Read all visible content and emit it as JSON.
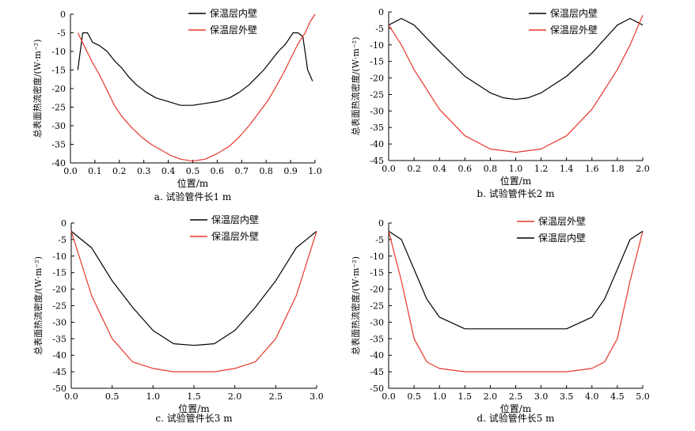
{
  "chart_data": [
    {
      "type": "line",
      "caption": "a. 试验管件长1 m",
      "xlabel": "位置/m",
      "ylabel": "总表面热流密度/(W·m⁻²)",
      "xlim": [
        0,
        1.0
      ],
      "ylim": [
        -40,
        0
      ],
      "xticks": [
        0.0,
        0.1,
        0.2,
        0.3,
        0.4,
        0.5,
        0.6,
        0.7,
        0.8,
        0.9,
        1.0
      ],
      "xtick_labels": [
        "0.0",
        "0.1",
        "0.2",
        "0.3",
        "0.4",
        "0.5",
        "0.6",
        "0.7",
        "0.8",
        "0.9",
        "1.0"
      ],
      "yticks": [
        0,
        -5,
        -10,
        -15,
        -20,
        -25,
        -30,
        -35,
        -40
      ],
      "ytick_labels": [
        "0",
        "-5",
        "-10",
        "-15",
        "-20",
        "-25",
        "-30",
        "-35",
        "-40"
      ],
      "legend_position": "top-right",
      "series": [
        {
          "name": "保温层内壁",
          "color": "#000000",
          "x": [
            0.03,
            0.05,
            0.07,
            0.09,
            0.12,
            0.15,
            0.18,
            0.21,
            0.24,
            0.27,
            0.31,
            0.35,
            0.4,
            0.45,
            0.5,
            0.55,
            0.6,
            0.65,
            0.69,
            0.73,
            0.76,
            0.79,
            0.82,
            0.85,
            0.88,
            0.91,
            0.93,
            0.95,
            0.97,
            0.99
          ],
          "y": [
            -15.0,
            -5.0,
            -5.0,
            -7.5,
            -8.5,
            -10.0,
            -12.5,
            -14.5,
            -17.0,
            -19.0,
            -21.0,
            -22.5,
            -23.5,
            -24.5,
            -24.5,
            -24.0,
            -23.5,
            -22.5,
            -21.0,
            -19.0,
            -17.0,
            -15.0,
            -12.5,
            -10.0,
            -8.0,
            -5.0,
            -5.0,
            -6.0,
            -15.0,
            -18.0
          ]
        },
        {
          "name": "保温层外壁",
          "color": "#e8362a",
          "x": [
            0.03,
            0.06,
            0.09,
            0.12,
            0.15,
            0.18,
            0.21,
            0.25,
            0.29,
            0.33,
            0.37,
            0.41,
            0.45,
            0.5,
            0.55,
            0.6,
            0.65,
            0.69,
            0.73,
            0.77,
            0.81,
            0.84,
            0.87,
            0.9,
            0.93,
            0.96,
            0.98,
            1.0
          ],
          "y": [
            -5.0,
            -9.0,
            -13.0,
            -16.5,
            -20.5,
            -24.5,
            -27.5,
            -30.5,
            -33.0,
            -35.0,
            -36.5,
            -38.0,
            -39.0,
            -39.5,
            -39.0,
            -37.5,
            -35.5,
            -33.0,
            -30.0,
            -26.5,
            -23.0,
            -19.5,
            -16.0,
            -12.0,
            -8.0,
            -5.0,
            -2.0,
            0.0
          ]
        }
      ]
    },
    {
      "type": "line",
      "caption": "b. 试验管件长2 m",
      "xlabel": "位置/m",
      "ylabel": "总表面热流密度/(W·m⁻²)",
      "xlim": [
        0,
        2.0
      ],
      "ylim": [
        -45,
        0
      ],
      "xticks": [
        0.0,
        0.2,
        0.4,
        0.6,
        0.8,
        1.0,
        1.2,
        1.4,
        1.6,
        1.8,
        2.0
      ],
      "xtick_labels": [
        "0.0",
        "0.2",
        "0.4",
        "0.6",
        "0.8",
        "1.0",
        "1.2",
        "1.4",
        "1.6",
        "1.8",
        "2.0"
      ],
      "yticks": [
        0,
        -5,
        -10,
        -15,
        -20,
        -25,
        -30,
        -35,
        -40,
        -45
      ],
      "ytick_labels": [
        "0",
        "-5",
        "-10",
        "-15",
        "-20",
        "-25",
        "-30",
        "-35",
        "-40",
        "-45"
      ],
      "legend_position": "top-right",
      "series": [
        {
          "name": "保温层内壁",
          "color": "#000000",
          "x": [
            0.0,
            0.1,
            0.2,
            0.4,
            0.6,
            0.8,
            0.9,
            1.0,
            1.1,
            1.2,
            1.4,
            1.6,
            1.8,
            1.9,
            2.0
          ],
          "y": [
            -4.0,
            -2.0,
            -4.0,
            -12.0,
            -19.5,
            -24.5,
            -26.0,
            -26.5,
            -26.0,
            -24.5,
            -19.5,
            -12.5,
            -4.0,
            -2.0,
            -4.0
          ]
        },
        {
          "name": "保温层外壁",
          "color": "#e8362a",
          "x": [
            0.0,
            0.1,
            0.2,
            0.4,
            0.6,
            0.8,
            1.0,
            1.2,
            1.4,
            1.6,
            1.8,
            1.9,
            2.0
          ],
          "y": [
            -4.0,
            -10.0,
            -17.5,
            -29.5,
            -37.5,
            -41.5,
            -42.5,
            -41.5,
            -37.5,
            -29.5,
            -17.5,
            -10.0,
            -1.0
          ]
        }
      ]
    },
    {
      "type": "line",
      "caption": "c. 试验管件长3 m",
      "xlabel": "位置/m",
      "ylabel": "总表面热流密度/(W·m⁻²)",
      "xlim": [
        0,
        3.0
      ],
      "ylim": [
        -50,
        0
      ],
      "xticks": [
        0.0,
        0.5,
        1.0,
        1.5,
        2.0,
        2.5,
        3.0
      ],
      "xtick_labels": [
        "0.0",
        "0.5",
        "1.0",
        "1.5",
        "2.0",
        "2.5",
        "3.0"
      ],
      "yticks": [
        0,
        -5,
        -10,
        -15,
        -20,
        -25,
        -30,
        -35,
        -40,
        -45,
        -50
      ],
      "ytick_labels": [
        "0",
        "-5",
        "-10",
        "-15",
        "-20",
        "-25",
        "-30",
        "-35",
        "-40",
        "-45",
        "-50"
      ],
      "legend_position": "top-right",
      "series": [
        {
          "name": "保温层内壁",
          "color": "#000000",
          "x": [
            0.0,
            0.25,
            0.5,
            0.75,
            1.0,
            1.25,
            1.5,
            1.75,
            2.0,
            2.25,
            2.5,
            2.75,
            3.0
          ],
          "y": [
            -2.5,
            -7.5,
            -17.5,
            -25.5,
            -32.5,
            -36.5,
            -37.0,
            -36.5,
            -32.5,
            -25.5,
            -17.5,
            -7.5,
            -2.5
          ]
        },
        {
          "name": "保温层外壁",
          "color": "#e8362a",
          "x": [
            0.0,
            0.25,
            0.5,
            0.75,
            1.0,
            1.25,
            1.5,
            1.75,
            2.0,
            2.25,
            2.5,
            2.75,
            3.0
          ],
          "y": [
            -2.5,
            -22.0,
            -35.0,
            -42.0,
            -44.0,
            -45.0,
            -45.0,
            -45.0,
            -44.0,
            -42.0,
            -35.0,
            -22.0,
            -2.5
          ]
        }
      ]
    },
    {
      "type": "line",
      "caption": "d. 试验管件长5 m",
      "xlabel": "位置/m",
      "ylabel": "总表面热流密度/(W·m⁻²)",
      "xlim": [
        0,
        5.0
      ],
      "ylim": [
        -50,
        0
      ],
      "xticks": [
        0.0,
        0.5,
        1.0,
        1.5,
        2.0,
        2.5,
        3.0,
        3.5,
        4.0,
        4.5,
        5.0
      ],
      "xtick_labels": [
        "0.0",
        "0.5",
        "1.0",
        "1.5",
        "2.0",
        "2.5",
        "3.0",
        "3.5",
        "4.0",
        "4.5",
        "5.0"
      ],
      "yticks": [
        0,
        -5,
        -10,
        -15,
        -20,
        -25,
        -30,
        -35,
        -40,
        -45,
        -50
      ],
      "ytick_labels": [
        "0",
        "-5",
        "-10",
        "-15",
        "-20",
        "-25",
        "-30",
        "-35",
        "-40",
        "-45",
        "-50"
      ],
      "legend_position": "top-right",
      "series": [
        {
          "name": "保温层外壁",
          "color": "#e8362a",
          "x": [
            0.0,
            0.25,
            0.5,
            0.75,
            1.0,
            1.5,
            2.0,
            2.5,
            3.0,
            3.5,
            4.0,
            4.25,
            4.5,
            4.75,
            5.0
          ],
          "y": [
            -2.5,
            -17.5,
            -35.0,
            -42.0,
            -44.0,
            -45.0,
            -45.0,
            -45.0,
            -45.0,
            -45.0,
            -44.0,
            -42.0,
            -35.0,
            -17.5,
            -2.5
          ]
        },
        {
          "name": "保温层内壁",
          "color": "#000000",
          "x": [
            0.0,
            0.25,
            0.5,
            0.75,
            1.0,
            1.5,
            2.0,
            2.5,
            3.0,
            3.5,
            4.0,
            4.25,
            4.5,
            4.75,
            5.0
          ],
          "y": [
            -2.5,
            -5.0,
            -14.0,
            -23.0,
            -28.5,
            -32.0,
            -32.0,
            -32.0,
            -32.0,
            -32.0,
            -28.5,
            -23.0,
            -14.0,
            -5.0,
            -2.5
          ]
        }
      ]
    }
  ]
}
